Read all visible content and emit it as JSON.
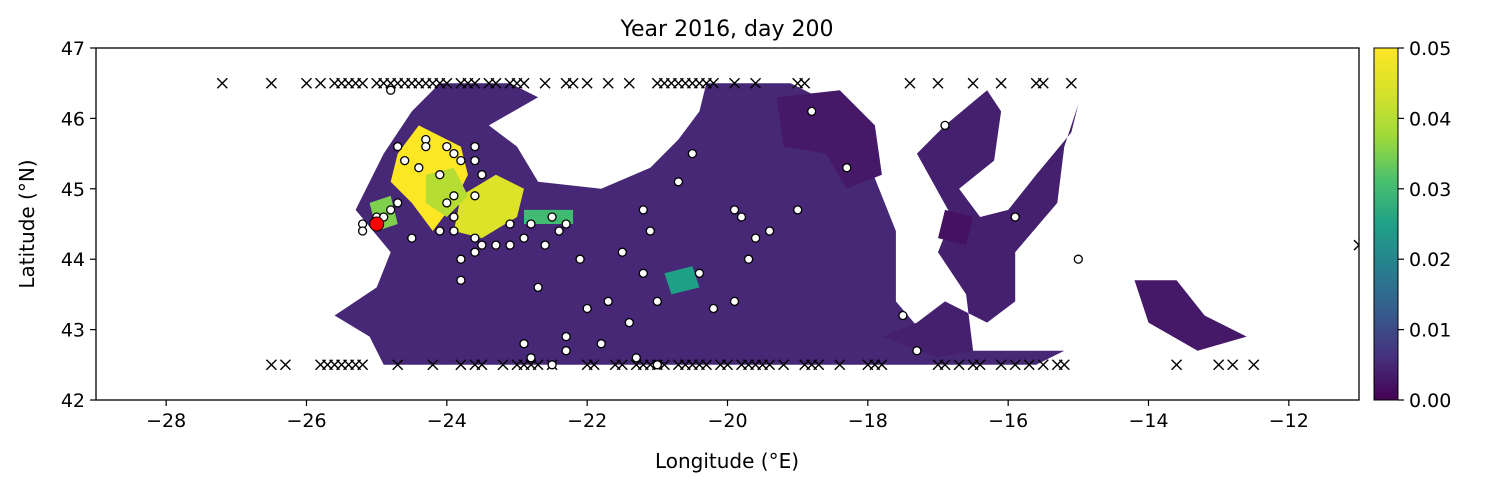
{
  "chart_data": {
    "type": "heatmap",
    "title": "Year 2016, day 200",
    "xlabel": "Longitude (°E)",
    "ylabel": "Latitude (°N)",
    "xlim": [
      -29,
      -11
    ],
    "ylim": [
      42,
      47
    ],
    "xticks": [
      -28,
      -26,
      -24,
      -22,
      -20,
      -18,
      -16,
      -14,
      -12
    ],
    "xtick_labels": [
      "−28",
      "−26",
      "−24",
      "−22",
      "−20",
      "−18",
      "−16",
      "−14",
      "−12"
    ],
    "yticks": [
      42,
      43,
      44,
      45,
      46,
      47
    ],
    "ytick_labels": [
      "42",
      "43",
      "44",
      "45",
      "46",
      "47"
    ],
    "colorbar": {
      "colormap": "viridis",
      "range": [
        0,
        0.05
      ],
      "ticks": [
        0,
        0.01,
        0.02,
        0.03,
        0.04,
        0.05
      ],
      "tick_labels": [
        "0.00",
        "0.01",
        "0.02",
        "0.03",
        "0.04",
        "0.05"
      ]
    },
    "field_patches": [
      {
        "polygon": [
          [
            -25.6,
            43.2
          ],
          [
            -25.0,
            43.6
          ],
          [
            -24.8,
            44.1
          ],
          [
            -25.3,
            44.7
          ],
          [
            -24.9,
            45.5
          ],
          [
            -24.5,
            46.1
          ],
          [
            -24.1,
            46.5
          ],
          [
            -23.1,
            46.5
          ],
          [
            -22.7,
            46.3
          ],
          [
            -23.4,
            45.9
          ],
          [
            -23.0,
            45.6
          ],
          [
            -22.7,
            45.1
          ],
          [
            -21.8,
            45.0
          ],
          [
            -21.1,
            45.3
          ],
          [
            -20.7,
            45.7
          ],
          [
            -20.4,
            46.1
          ],
          [
            -20.3,
            46.5
          ],
          [
            -19.5,
            46.5
          ],
          [
            -19.1,
            46.5
          ],
          [
            -18.3,
            46.1
          ],
          [
            -18.0,
            45.4
          ],
          [
            -17.6,
            44.4
          ],
          [
            -17.6,
            43.4
          ],
          [
            -17.0,
            42.7
          ],
          [
            -15.2,
            42.7
          ],
          [
            -15.6,
            42.5
          ],
          [
            -24.9,
            42.5
          ],
          [
            -25.1,
            42.9
          ]
        ],
        "value": 0.005
      },
      {
        "polygon": [
          [
            -19.3,
            46.3
          ],
          [
            -18.4,
            46.4
          ],
          [
            -17.9,
            45.9
          ],
          [
            -17.8,
            45.2
          ],
          [
            -18.3,
            45.0
          ],
          [
            -18.6,
            45.5
          ],
          [
            -19.2,
            45.6
          ]
        ],
        "value": 0.003
      },
      {
        "polygon": [
          [
            -17.8,
            42.9
          ],
          [
            -17.0,
            42.6
          ],
          [
            -16.5,
            42.7
          ],
          [
            -16.6,
            43.5
          ],
          [
            -17.0,
            44.1
          ],
          [
            -16.8,
            44.6
          ],
          [
            -17.3,
            45.5
          ],
          [
            -16.9,
            45.9
          ],
          [
            -16.3,
            46.4
          ],
          [
            -16.1,
            46.1
          ],
          [
            -16.2,
            45.4
          ],
          [
            -16.7,
            45.0
          ],
          [
            -16.4,
            44.6
          ],
          [
            -16.0,
            44.7
          ],
          [
            -15.6,
            45.2
          ],
          [
            -15.1,
            45.8
          ],
          [
            -15.0,
            46.2
          ],
          [
            -15.2,
            45.6
          ],
          [
            -15.3,
            44.8
          ],
          [
            -15.9,
            44.1
          ],
          [
            -15.9,
            43.4
          ],
          [
            -16.3,
            43.1
          ],
          [
            -16.9,
            43.4
          ],
          [
            -17.3,
            43.1
          ]
        ],
        "value": 0.004
      },
      {
        "polygon": [
          [
            -14.2,
            43.7
          ],
          [
            -13.6,
            43.7
          ],
          [
            -13.2,
            43.2
          ],
          [
            -12.6,
            42.9
          ],
          [
            -13.3,
            42.7
          ],
          [
            -14.0,
            43.1
          ]
        ],
        "value": 0.003
      },
      {
        "polygon": [
          [
            -17.0,
            44.3
          ],
          [
            -16.6,
            44.2
          ],
          [
            -16.5,
            44.6
          ],
          [
            -16.9,
            44.7
          ]
        ],
        "value": 0.002
      }
    ],
    "hotspots": [
      {
        "polygon": [
          [
            -24.4,
            45.9
          ],
          [
            -23.8,
            45.6
          ],
          [
            -23.7,
            45.2
          ],
          [
            -23.9,
            44.8
          ],
          [
            -24.2,
            44.4
          ],
          [
            -24.5,
            44.8
          ],
          [
            -24.8,
            45.1
          ],
          [
            -24.7,
            45.5
          ]
        ],
        "value": 0.05
      },
      {
        "polygon": [
          [
            -23.8,
            44.9
          ],
          [
            -23.3,
            45.2
          ],
          [
            -22.9,
            45.0
          ],
          [
            -23.0,
            44.6
          ],
          [
            -23.5,
            44.3
          ],
          [
            -23.9,
            44.4
          ]
        ],
        "value": 0.045
      },
      {
        "polygon": [
          [
            -24.3,
            45.2
          ],
          [
            -23.9,
            45.3
          ],
          [
            -23.7,
            44.9
          ],
          [
            -24.0,
            44.6
          ],
          [
            -24.3,
            44.8
          ]
        ],
        "value": 0.04
      },
      {
        "polygon": [
          [
            -22.9,
            44.7
          ],
          [
            -22.2,
            44.7
          ],
          [
            -22.2,
            44.5
          ],
          [
            -22.9,
            44.5
          ]
        ],
        "value": 0.03
      },
      {
        "polygon": [
          [
            -25.1,
            44.8
          ],
          [
            -24.8,
            44.9
          ],
          [
            -24.7,
            44.5
          ],
          [
            -25.0,
            44.4
          ]
        ],
        "value": 0.035
      },
      {
        "polygon": [
          [
            -20.9,
            43.8
          ],
          [
            -20.5,
            43.9
          ],
          [
            -20.4,
            43.6
          ],
          [
            -20.8,
            43.5
          ]
        ],
        "value": 0.025
      }
    ],
    "open_circles": [
      [
        -24.8,
        46.4
      ],
      [
        -24.3,
        45.7
      ],
      [
        -24.3,
        45.6
      ],
      [
        -24.1,
        45.2
      ],
      [
        -24.0,
        45.6
      ],
      [
        -23.9,
        45.5
      ],
      [
        -23.8,
        45.4
      ],
      [
        -23.6,
        45.4
      ],
      [
        -23.6,
        45.6
      ],
      [
        -23.5,
        45.2
      ],
      [
        -23.6,
        44.9
      ],
      [
        -23.9,
        44.9
      ],
      [
        -24.1,
        44.4
      ],
      [
        -24.4,
        45.3
      ],
      [
        -24.6,
        45.4
      ],
      [
        -24.7,
        45.6
      ],
      [
        -24.7,
        44.8
      ],
      [
        -24.8,
        44.7
      ],
      [
        -25.0,
        44.6
      ],
      [
        -25.2,
        44.5
      ],
      [
        -24.0,
        44.8
      ],
      [
        -23.9,
        44.6
      ],
      [
        -23.9,
        44.4
      ],
      [
        -23.8,
        44.0
      ],
      [
        -23.8,
        43.7
      ],
      [
        -23.6,
        44.3
      ],
      [
        -23.5,
        44.2
      ],
      [
        -23.3,
        44.2
      ],
      [
        -23.1,
        44.2
      ],
      [
        -22.9,
        44.3
      ],
      [
        -22.8,
        44.5
      ],
      [
        -22.5,
        44.6
      ],
      [
        -22.4,
        44.4
      ],
      [
        -22.3,
        44.5
      ],
      [
        -22.1,
        44.0
      ],
      [
        -21.5,
        44.1
      ],
      [
        -21.1,
        44.4
      ],
      [
        -21.2,
        44.7
      ],
      [
        -20.7,
        45.1
      ],
      [
        -20.5,
        45.5
      ],
      [
        -21.2,
        43.8
      ],
      [
        -20.4,
        43.8
      ],
      [
        -21.0,
        43.4
      ],
      [
        -20.2,
        43.3
      ],
      [
        -19.9,
        43.4
      ],
      [
        -19.9,
        44.7
      ],
      [
        -19.6,
        44.3
      ],
      [
        -19.7,
        44.0
      ],
      [
        -19.4,
        44.4
      ],
      [
        -19.0,
        44.7
      ],
      [
        -18.8,
        46.1
      ],
      [
        -18.3,
        45.3
      ],
      [
        -16.9,
        45.9
      ],
      [
        -15.9,
        44.6
      ],
      [
        -15.0,
        44.0
      ],
      [
        -17.5,
        43.2
      ],
      [
        -17.3,
        42.7
      ],
      [
        -21.7,
        43.4
      ],
      [
        -21.4,
        43.1
      ],
      [
        -22.0,
        43.3
      ],
      [
        -21.8,
        42.8
      ],
      [
        -22.3,
        42.9
      ],
      [
        -22.5,
        42.5
      ],
      [
        -22.8,
        42.6
      ],
      [
        -22.9,
        42.8
      ],
      [
        -22.3,
        42.7
      ],
      [
        -21.3,
        42.6
      ],
      [
        -21.0,
        42.5
      ],
      [
        -23.1,
        44.5
      ],
      [
        -22.6,
        44.2
      ],
      [
        -22.7,
        43.6
      ],
      [
        -19.8,
        44.6
      ],
      [
        -23.6,
        44.1
      ],
      [
        -24.5,
        44.3
      ],
      [
        -25.2,
        44.4
      ],
      [
        -24.9,
        44.6
      ]
    ],
    "origin_marker": [
      -25.0,
      44.5
    ],
    "x_markers": [
      [
        -27.2,
        46.5
      ],
      [
        -26.5,
        46.5
      ],
      [
        -26.0,
        46.5
      ],
      [
        -25.8,
        46.5
      ],
      [
        -25.6,
        46.5
      ],
      [
        -25.5,
        46.5
      ],
      [
        -25.4,
        46.5
      ],
      [
        -25.3,
        46.5
      ],
      [
        -25.2,
        46.5
      ],
      [
        -25.0,
        46.5
      ],
      [
        -24.9,
        46.5
      ],
      [
        -24.8,
        46.5
      ],
      [
        -24.7,
        46.5
      ],
      [
        -24.6,
        46.5
      ],
      [
        -24.5,
        46.5
      ],
      [
        -24.4,
        46.5
      ],
      [
        -24.3,
        46.5
      ],
      [
        -24.2,
        46.5
      ],
      [
        -24.1,
        46.5
      ],
      [
        -24.0,
        46.5
      ],
      [
        -23.8,
        46.5
      ],
      [
        -23.7,
        46.5
      ],
      [
        -23.6,
        46.5
      ],
      [
        -23.4,
        46.5
      ],
      [
        -23.3,
        46.5
      ],
      [
        -23.1,
        46.5
      ],
      [
        -23.0,
        46.5
      ],
      [
        -22.9,
        46.5
      ],
      [
        -22.6,
        46.5
      ],
      [
        -22.3,
        46.5
      ],
      [
        -22.2,
        46.5
      ],
      [
        -22.0,
        46.5
      ],
      [
        -21.7,
        46.5
      ],
      [
        -21.4,
        46.5
      ],
      [
        -21.0,
        46.5
      ],
      [
        -20.9,
        46.5
      ],
      [
        -20.8,
        46.5
      ],
      [
        -20.7,
        46.5
      ],
      [
        -20.6,
        46.5
      ],
      [
        -20.5,
        46.5
      ],
      [
        -20.4,
        46.5
      ],
      [
        -20.3,
        46.5
      ],
      [
        -20.2,
        46.5
      ],
      [
        -19.9,
        46.5
      ],
      [
        -19.6,
        46.5
      ],
      [
        -19.0,
        46.5
      ],
      [
        -18.9,
        46.5
      ],
      [
        -17.4,
        46.5
      ],
      [
        -17.0,
        46.5
      ],
      [
        -16.5,
        46.5
      ],
      [
        -16.1,
        46.5
      ],
      [
        -15.6,
        46.5
      ],
      [
        -15.5,
        46.5
      ],
      [
        -15.1,
        46.5
      ],
      [
        -26.5,
        42.5
      ],
      [
        -26.3,
        42.5
      ],
      [
        -25.8,
        42.5
      ],
      [
        -25.7,
        42.5
      ],
      [
        -25.6,
        42.5
      ],
      [
        -25.5,
        42.5
      ],
      [
        -25.4,
        42.5
      ],
      [
        -25.3,
        42.5
      ],
      [
        -25.2,
        42.5
      ],
      [
        -24.7,
        42.5
      ],
      [
        -24.2,
        42.5
      ],
      [
        -23.8,
        42.5
      ],
      [
        -23.6,
        42.5
      ],
      [
        -23.5,
        42.5
      ],
      [
        -23.2,
        42.5
      ],
      [
        -23.0,
        42.5
      ],
      [
        -22.9,
        42.5
      ],
      [
        -22.8,
        42.5
      ],
      [
        -22.7,
        42.5
      ],
      [
        -22.5,
        42.5
      ],
      [
        -22.0,
        42.5
      ],
      [
        -21.9,
        42.5
      ],
      [
        -21.6,
        42.5
      ],
      [
        -21.5,
        42.5
      ],
      [
        -21.3,
        42.5
      ],
      [
        -21.2,
        42.5
      ],
      [
        -21.1,
        42.5
      ],
      [
        -21.0,
        42.5
      ],
      [
        -20.9,
        42.5
      ],
      [
        -20.7,
        42.5
      ],
      [
        -20.6,
        42.5
      ],
      [
        -20.5,
        42.5
      ],
      [
        -20.4,
        42.5
      ],
      [
        -20.3,
        42.5
      ],
      [
        -20.1,
        42.5
      ],
      [
        -20.0,
        42.5
      ],
      [
        -19.8,
        42.5
      ],
      [
        -19.7,
        42.5
      ],
      [
        -19.6,
        42.5
      ],
      [
        -19.5,
        42.5
      ],
      [
        -19.4,
        42.5
      ],
      [
        -19.2,
        42.5
      ],
      [
        -18.9,
        42.5
      ],
      [
        -18.8,
        42.5
      ],
      [
        -18.7,
        42.5
      ],
      [
        -18.4,
        42.5
      ],
      [
        -18.0,
        42.5
      ],
      [
        -17.9,
        42.5
      ],
      [
        -17.8,
        42.5
      ],
      [
        -17.0,
        42.5
      ],
      [
        -16.9,
        42.5
      ],
      [
        -16.7,
        42.5
      ],
      [
        -16.5,
        42.5
      ],
      [
        -16.4,
        42.5
      ],
      [
        -16.1,
        42.5
      ],
      [
        -15.9,
        42.5
      ],
      [
        -15.7,
        42.5
      ],
      [
        -15.5,
        42.5
      ],
      [
        -15.3,
        42.5
      ],
      [
        -15.2,
        42.5
      ],
      [
        -13.6,
        42.5
      ],
      [
        -13.0,
        42.5
      ],
      [
        -12.8,
        42.5
      ],
      [
        -12.5,
        42.5
      ],
      [
        -11.0,
        44.2
      ]
    ]
  }
}
